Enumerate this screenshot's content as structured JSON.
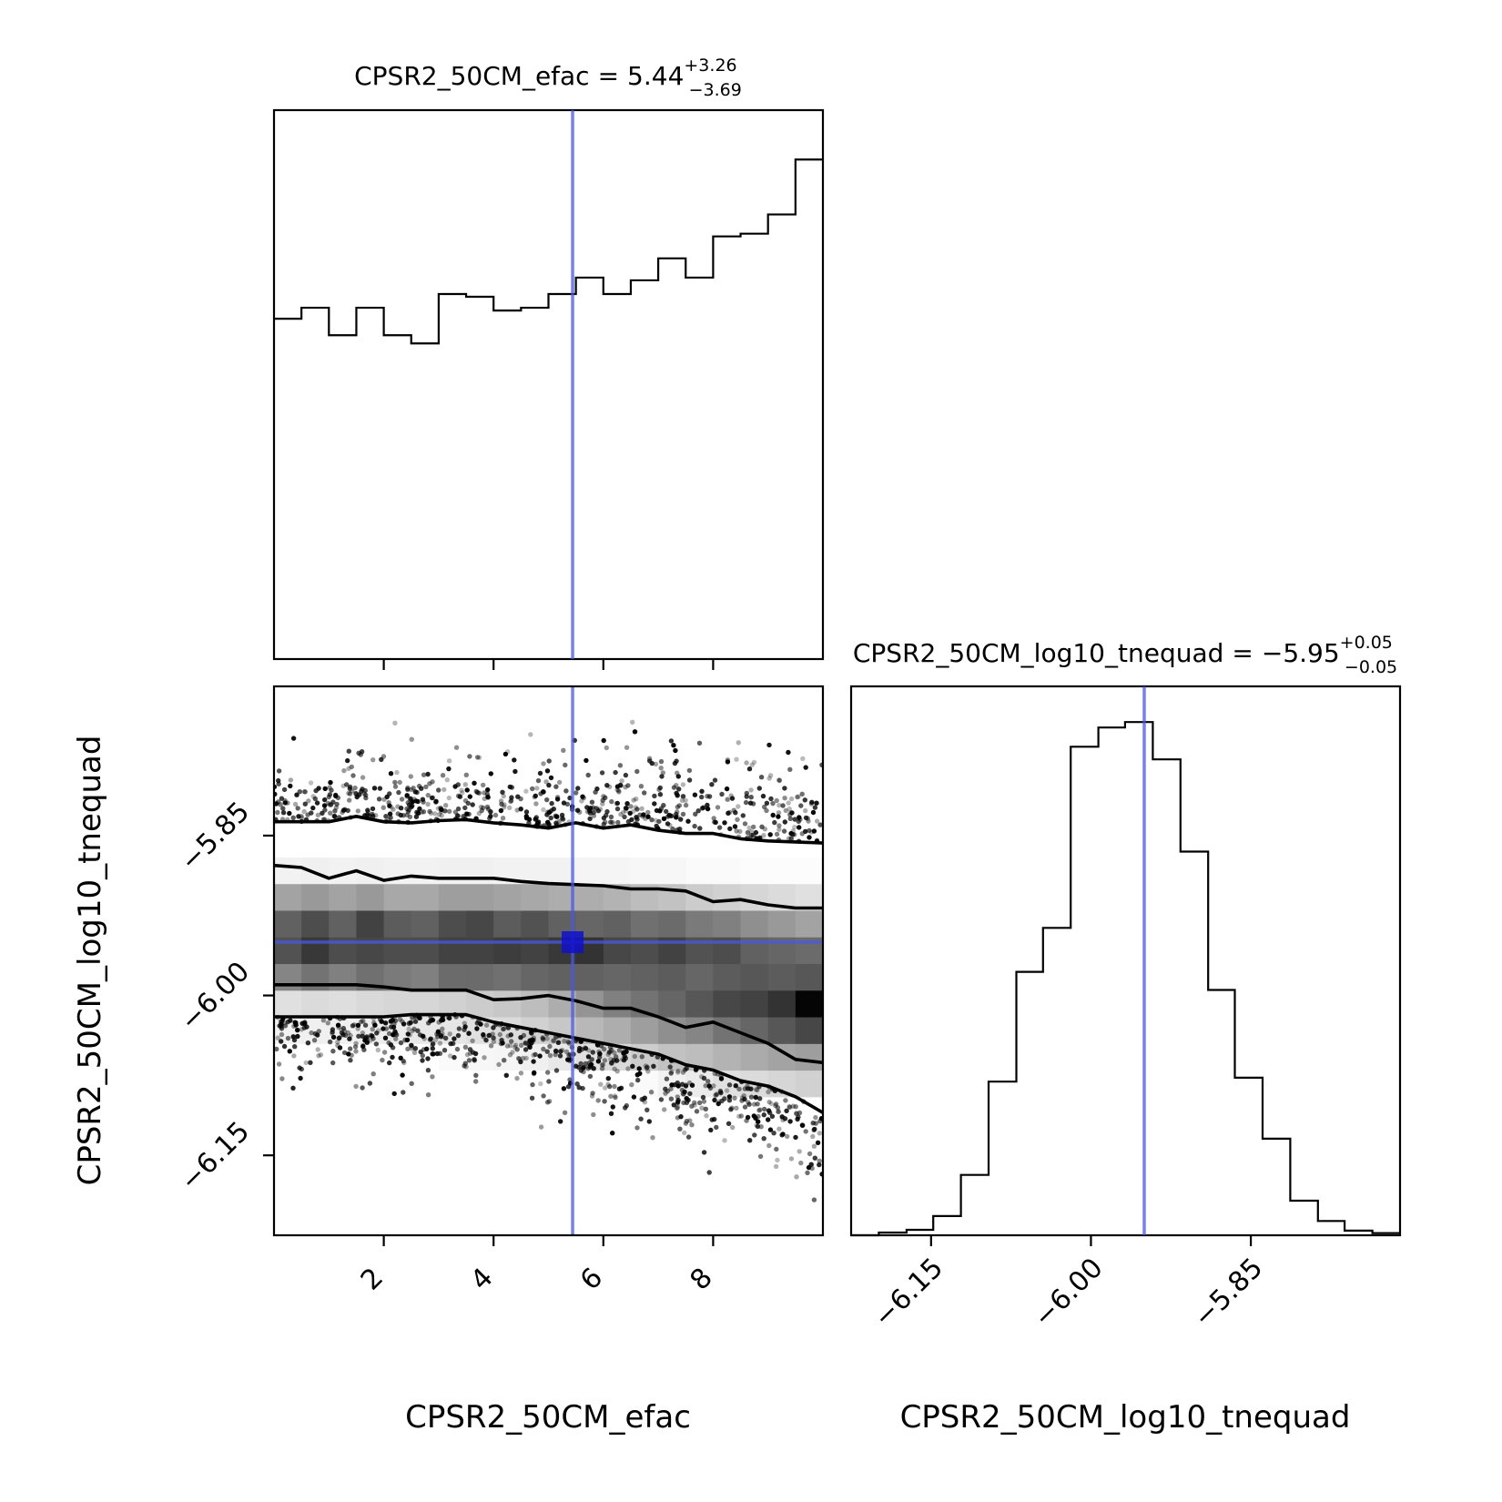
{
  "chart_data": [
    {
      "type": "histogram",
      "panel": "efac-1d",
      "title": {
        "label": "CPSR2_50CM_efac",
        "op": "=",
        "median": "5.44",
        "upper": "+3.26",
        "lower": "−3.69"
      },
      "xlim": [
        0.0,
        10.0
      ],
      "bin_edges": [
        0.0,
        0.5,
        1.0,
        1.5,
        2.0,
        2.5,
        3.0,
        3.5,
        4.0,
        4.5,
        5.0,
        5.5,
        6.0,
        6.5,
        7.0,
        7.5,
        8.0,
        8.5,
        9.0,
        9.5,
        10.0
      ],
      "counts": [
        0.62,
        0.64,
        0.59,
        0.64,
        0.59,
        0.575,
        0.665,
        0.66,
        0.635,
        0.64,
        0.665,
        0.695,
        0.665,
        0.69,
        0.73,
        0.695,
        0.77,
        0.775,
        0.81,
        0.91
      ],
      "ylim": [
        0,
        1.0
      ],
      "truth": 5.44
    },
    {
      "type": "heatmap",
      "panel": "efac-vs-log10-tnequad-2d",
      "xlabel": "CPSR2_50CM_efac",
      "ylabel": "CPSR2_50CM_log10_tnequad",
      "xlim": [
        0.0,
        10.0
      ],
      "ylim": [
        -6.225,
        -5.71
      ],
      "xticks": [
        "2",
        "4",
        "6",
        "8"
      ],
      "xtick_values": [
        2,
        4,
        6,
        8
      ],
      "yticks": [
        "−5.85",
        "−6.00",
        "−6.15"
      ],
      "ytick_values": [
        -5.85,
        -6.0,
        -6.15
      ],
      "x_bins": 20,
      "y_bin_edges": [
        -6.095,
        -6.07,
        -6.045,
        -6.02,
        -5.995,
        -5.97,
        -5.945,
        -5.92,
        -5.895,
        -5.87,
        -5.845
      ],
      "density_rows_bottom_to_top": [
        [
          0.0,
          0.0,
          0.0,
          0.0,
          0.0,
          0.0,
          0.0,
          0.0,
          0.0,
          0.0,
          0.0,
          0.0,
          0.0,
          0.02,
          0.05,
          0.08,
          0.12,
          0.14,
          0.16,
          0.18
        ],
        [
          0.0,
          0.0,
          0.0,
          0.0,
          0.0,
          0.0,
          0.02,
          0.03,
          0.04,
          0.06,
          0.09,
          0.12,
          0.15,
          0.2,
          0.24,
          0.26,
          0.3,
          0.33,
          0.36,
          0.38
        ],
        [
          0.05,
          0.06,
          0.06,
          0.07,
          0.08,
          0.09,
          0.1,
          0.12,
          0.14,
          0.18,
          0.22,
          0.28,
          0.32,
          0.38,
          0.44,
          0.48,
          0.55,
          0.6,
          0.66,
          0.72
        ],
        [
          0.12,
          0.14,
          0.13,
          0.15,
          0.16,
          0.16,
          0.18,
          0.2,
          0.22,
          0.26,
          0.32,
          0.42,
          0.5,
          0.55,
          0.6,
          0.66,
          0.72,
          0.74,
          0.8,
          0.98
        ],
        [
          0.48,
          0.55,
          0.5,
          0.56,
          0.52,
          0.5,
          0.58,
          0.58,
          0.56,
          0.6,
          0.62,
          0.62,
          0.6,
          0.62,
          0.64,
          0.6,
          0.64,
          0.66,
          0.64,
          0.66
        ],
        [
          0.68,
          0.78,
          0.7,
          0.72,
          0.7,
          0.7,
          0.74,
          0.74,
          0.76,
          0.74,
          0.78,
          0.8,
          0.72,
          0.7,
          0.74,
          0.68,
          0.7,
          0.62,
          0.6,
          0.58
        ],
        [
          0.62,
          0.7,
          0.62,
          0.74,
          0.64,
          0.62,
          0.7,
          0.72,
          0.64,
          0.68,
          0.62,
          0.6,
          0.62,
          0.56,
          0.58,
          0.52,
          0.5,
          0.44,
          0.4,
          0.36
        ],
        [
          0.36,
          0.4,
          0.36,
          0.4,
          0.34,
          0.34,
          0.38,
          0.38,
          0.36,
          0.34,
          0.32,
          0.32,
          0.3,
          0.26,
          0.24,
          0.2,
          0.18,
          0.16,
          0.14,
          0.12
        ],
        [
          0.05,
          0.06,
          0.05,
          0.06,
          0.05,
          0.05,
          0.06,
          0.06,
          0.05,
          0.05,
          0.05,
          0.04,
          0.04,
          0.03,
          0.03,
          0.02,
          0.02,
          0.01,
          0.01,
          0.01
        ],
        [
          0.0,
          0.0,
          0.0,
          0.0,
          0.0,
          0.0,
          0.0,
          0.0,
          0.0,
          0.0,
          0.0,
          0.0,
          0.0,
          0.0,
          0.0,
          0.0,
          0.0,
          0.0,
          0.0,
          0.0
        ]
      ],
      "contour_x": [
        0.0,
        0.5,
        1.0,
        1.5,
        2.0,
        2.5,
        3.0,
        3.5,
        4.0,
        4.5,
        5.0,
        5.5,
        6.0,
        6.5,
        7.0,
        7.5,
        8.0,
        8.5,
        9.0,
        9.5,
        10.0
      ],
      "contour_levels": [
        [
          -5.837,
          -5.837,
          -5.837,
          -5.832,
          -5.837,
          -5.838,
          -5.836,
          -5.835,
          -5.838,
          -5.84,
          -5.843,
          -5.838,
          -5.843,
          -5.84,
          -5.845,
          -5.848,
          -5.848,
          -5.853,
          -5.855,
          -5.856,
          -5.857
        ],
        [
          -5.878,
          -5.88,
          -5.89,
          -5.883,
          -5.892,
          -5.888,
          -5.89,
          -5.89,
          -5.89,
          -5.893,
          -5.895,
          -5.896,
          -5.897,
          -5.9,
          -5.9,
          -5.902,
          -5.912,
          -5.91,
          -5.915,
          -5.918,
          -5.918
        ],
        [
          -5.99,
          -5.99,
          -5.99,
          -5.99,
          -5.992,
          -5.995,
          -5.995,
          -5.995,
          -6.004,
          -6.003,
          -6.0,
          -6.005,
          -6.012,
          -6.012,
          -6.02,
          -6.03,
          -6.025,
          -6.035,
          -6.045,
          -6.06,
          -6.063
        ],
        [
          -6.02,
          -6.02,
          -6.02,
          -6.02,
          -6.02,
          -6.018,
          -6.018,
          -6.018,
          -6.025,
          -6.03,
          -6.035,
          -6.04,
          -6.045,
          -6.05,
          -6.055,
          -6.065,
          -6.07,
          -6.08,
          -6.085,
          -6.095,
          -6.11
        ]
      ],
      "truth": {
        "x": 5.44,
        "y": -5.95
      }
    },
    {
      "type": "histogram",
      "panel": "log10-tnequad-1d",
      "title": {
        "label": "CPSR2_50CM_log10_tnequad",
        "op": "=",
        "median": "−5.95",
        "upper": "+0.05",
        "lower": "−0.05"
      },
      "xlabel": "CPSR2_50CM_log10_tnequad",
      "xlim": [
        -6.225,
        -5.71
      ],
      "xticks": [
        "−6.15",
        "−6.00",
        "−5.85"
      ],
      "xtick_values": [
        -6.15,
        -6.0,
        -5.85
      ],
      "bin_edges": [
        -6.225,
        -6.199,
        -6.173,
        -6.148,
        -6.122,
        -6.096,
        -6.07,
        -6.045,
        -6.019,
        -5.993,
        -5.968,
        -5.942,
        -5.916,
        -5.89,
        -5.865,
        -5.839,
        -5.813,
        -5.787,
        -5.762,
        -5.736,
        -5.71
      ],
      "counts": [
        0.0,
        0.005,
        0.01,
        0.035,
        0.11,
        0.28,
        0.48,
        0.56,
        0.89,
        0.925,
        0.935,
        0.867,
        0.699,
        0.447,
        0.287,
        0.176,
        0.063,
        0.026,
        0.0085,
        0.004
      ],
      "ylim": [
        0,
        1.0
      ],
      "truth": -5.95
    }
  ],
  "colors": {
    "truth_line": "#4a57e6",
    "truth_marker": "#1010cc",
    "ink": "#000000"
  }
}
